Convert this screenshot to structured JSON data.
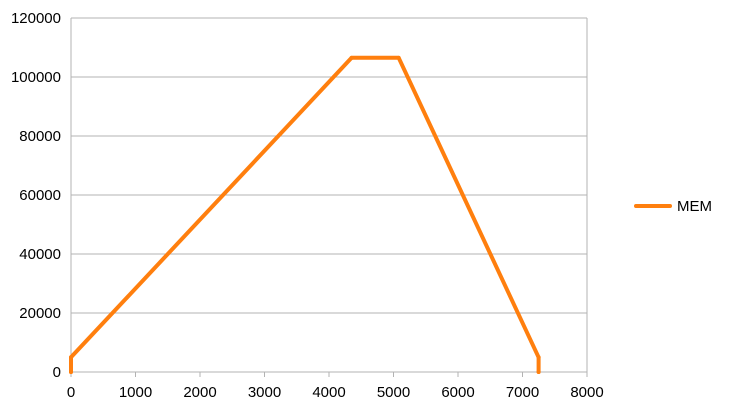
{
  "chart_data": {
    "type": "line",
    "title": "",
    "xlabel": "",
    "ylabel": "",
    "xlim": [
      0,
      8000
    ],
    "ylim": [
      0,
      120000
    ],
    "xticks": [
      0,
      1000,
      2000,
      3000,
      4000,
      5000,
      6000,
      7000,
      8000
    ],
    "yticks": [
      0,
      20000,
      40000,
      60000,
      80000,
      100000,
      120000
    ],
    "grid": "horizontal",
    "legend": "right",
    "series": [
      {
        "name": "MEM",
        "color": "#ff7f0e",
        "x": [
          0,
          0,
          4350,
          5080,
          7250,
          7250
        ],
        "y": [
          0,
          5000,
          106500,
          106500,
          5000,
          0
        ]
      }
    ]
  }
}
